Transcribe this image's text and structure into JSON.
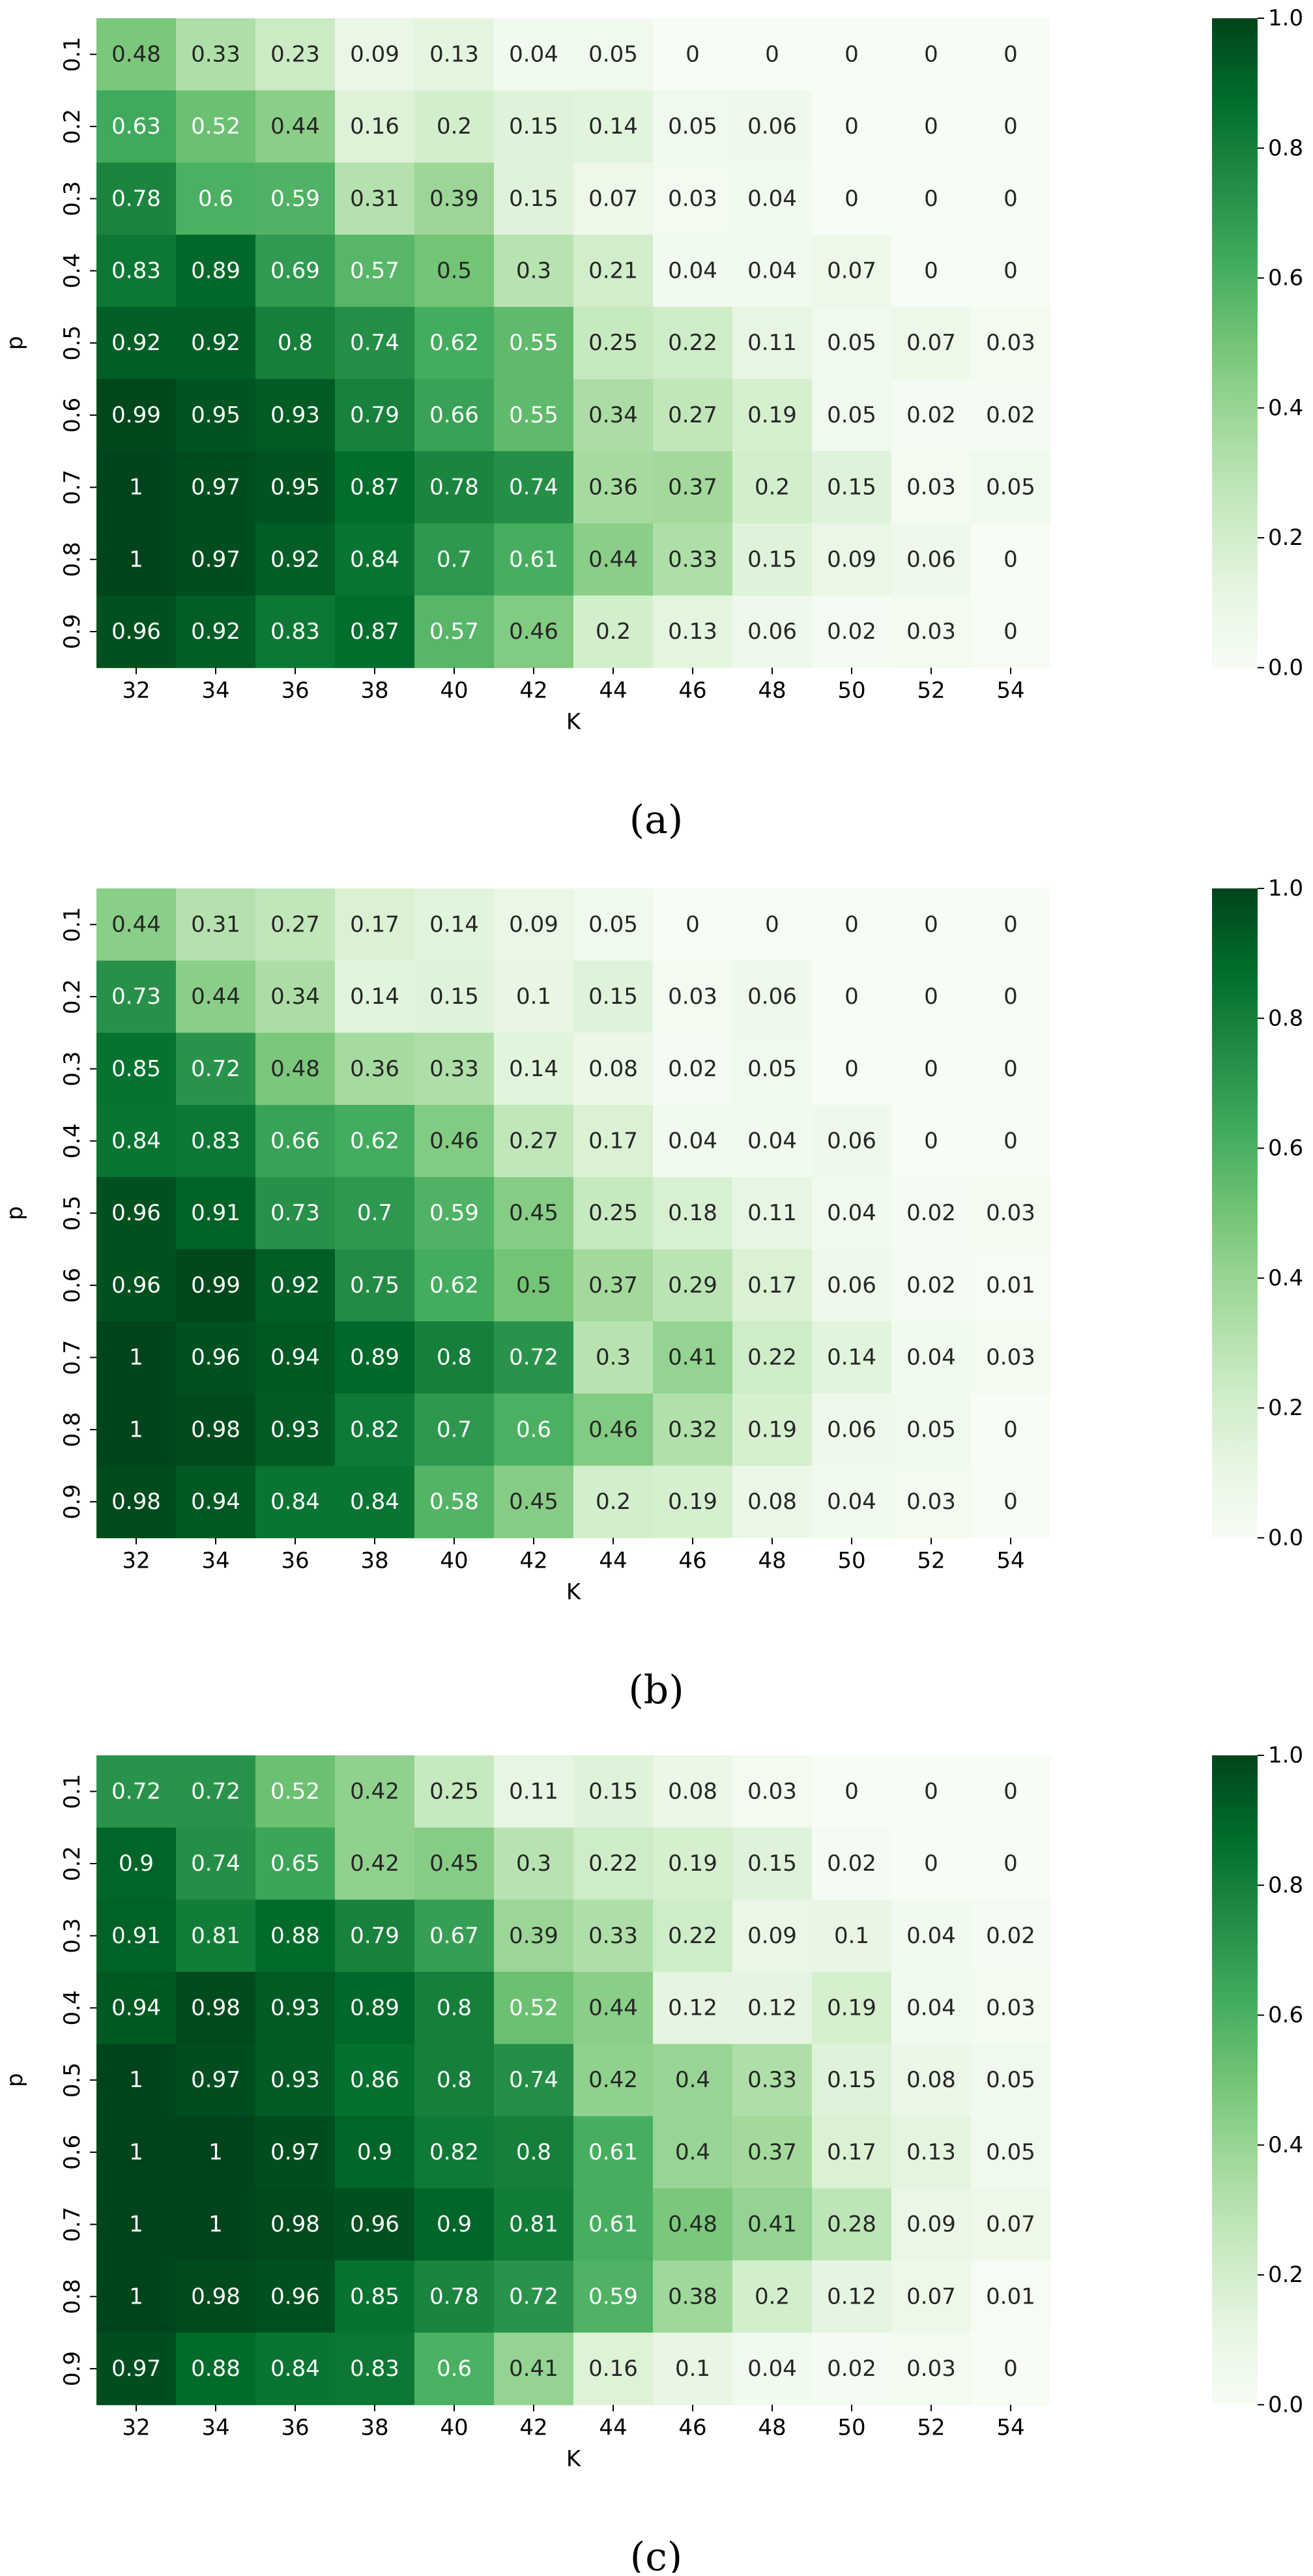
{
  "chart_data": [
    {
      "type": "heatmap",
      "caption": "(a)",
      "xlabel": "K",
      "ylabel": "p",
      "x_categories": [
        "32",
        "34",
        "36",
        "38",
        "40",
        "42",
        "44",
        "46",
        "48",
        "50",
        "52",
        "54"
      ],
      "y_categories": [
        "0.1",
        "0.2",
        "0.3",
        "0.4",
        "0.5",
        "0.6",
        "0.7",
        "0.8",
        "0.9"
      ],
      "values": [
        [
          0.48,
          0.33,
          0.23,
          0.09,
          0.13,
          0.04,
          0.05,
          0,
          0,
          0,
          0,
          0
        ],
        [
          0.63,
          0.52,
          0.44,
          0.16,
          0.2,
          0.15,
          0.14,
          0.05,
          0.06,
          0,
          0,
          0
        ],
        [
          0.78,
          0.6,
          0.59,
          0.31,
          0.39,
          0.15,
          0.07,
          0.03,
          0.04,
          0,
          0,
          0
        ],
        [
          0.83,
          0.89,
          0.69,
          0.57,
          0.5,
          0.3,
          0.21,
          0.04,
          0.04,
          0.07,
          0,
          0
        ],
        [
          0.92,
          0.92,
          0.8,
          0.74,
          0.62,
          0.55,
          0.25,
          0.22,
          0.11,
          0.05,
          0.07,
          0.03
        ],
        [
          0.99,
          0.95,
          0.93,
          0.79,
          0.66,
          0.55,
          0.34,
          0.27,
          0.19,
          0.05,
          0.02,
          0.02
        ],
        [
          1,
          0.97,
          0.95,
          0.87,
          0.78,
          0.74,
          0.36,
          0.37,
          0.2,
          0.15,
          0.03,
          0.05
        ],
        [
          1,
          0.97,
          0.92,
          0.84,
          0.7,
          0.61,
          0.44,
          0.33,
          0.15,
          0.09,
          0.06,
          0
        ],
        [
          0.96,
          0.92,
          0.83,
          0.87,
          0.57,
          0.46,
          0.2,
          0.13,
          0.06,
          0.02,
          0.03,
          0
        ]
      ],
      "colorbar": {
        "range": [
          0,
          1
        ],
        "ticks": [
          "0.0",
          "0.2",
          "0.4",
          "0.6",
          "0.8",
          "1.0"
        ]
      }
    },
    {
      "type": "heatmap",
      "caption": "(b)",
      "xlabel": "K",
      "ylabel": "p",
      "x_categories": [
        "32",
        "34",
        "36",
        "38",
        "40",
        "42",
        "44",
        "46",
        "48",
        "50",
        "52",
        "54"
      ],
      "y_categories": [
        "0.1",
        "0.2",
        "0.3",
        "0.4",
        "0.5",
        "0.6",
        "0.7",
        "0.8",
        "0.9"
      ],
      "values": [
        [
          0.44,
          0.31,
          0.27,
          0.17,
          0.14,
          0.09,
          0.05,
          0,
          0,
          0,
          0,
          0
        ],
        [
          0.73,
          0.44,
          0.34,
          0.14,
          0.15,
          0.1,
          0.15,
          0.03,
          0.06,
          0,
          0,
          0
        ],
        [
          0.85,
          0.72,
          0.48,
          0.36,
          0.33,
          0.14,
          0.08,
          0.02,
          0.05,
          0,
          0,
          0
        ],
        [
          0.84,
          0.83,
          0.66,
          0.62,
          0.46,
          0.27,
          0.17,
          0.04,
          0.04,
          0.06,
          0,
          0
        ],
        [
          0.96,
          0.91,
          0.73,
          0.7,
          0.59,
          0.45,
          0.25,
          0.18,
          0.11,
          0.04,
          0.02,
          0.03
        ],
        [
          0.96,
          0.99,
          0.92,
          0.75,
          0.62,
          0.5,
          0.37,
          0.29,
          0.17,
          0.06,
          0.02,
          0.01
        ],
        [
          1,
          0.96,
          0.94,
          0.89,
          0.8,
          0.72,
          0.3,
          0.41,
          0.22,
          0.14,
          0.04,
          0.03
        ],
        [
          1,
          0.98,
          0.93,
          0.82,
          0.7,
          0.6,
          0.46,
          0.32,
          0.19,
          0.06,
          0.05,
          0
        ],
        [
          0.98,
          0.94,
          0.84,
          0.84,
          0.58,
          0.45,
          0.2,
          0.19,
          0.08,
          0.04,
          0.03,
          0
        ]
      ],
      "colorbar": {
        "range": [
          0,
          1
        ],
        "ticks": [
          "0.0",
          "0.2",
          "0.4",
          "0.6",
          "0.8",
          "1.0"
        ]
      }
    },
    {
      "type": "heatmap",
      "caption": "(c)",
      "xlabel": "K",
      "ylabel": "p",
      "x_categories": [
        "32",
        "34",
        "36",
        "38",
        "40",
        "42",
        "44",
        "46",
        "48",
        "50",
        "52",
        "54"
      ],
      "y_categories": [
        "0.1",
        "0.2",
        "0.3",
        "0.4",
        "0.5",
        "0.6",
        "0.7",
        "0.8",
        "0.9"
      ],
      "values": [
        [
          0.72,
          0.72,
          0.52,
          0.42,
          0.25,
          0.11,
          0.15,
          0.08,
          0.03,
          0,
          0,
          0
        ],
        [
          0.9,
          0.74,
          0.65,
          0.42,
          0.45,
          0.3,
          0.22,
          0.19,
          0.15,
          0.02,
          0,
          0
        ],
        [
          0.91,
          0.81,
          0.88,
          0.79,
          0.67,
          0.39,
          0.33,
          0.22,
          0.09,
          0.1,
          0.04,
          0.02
        ],
        [
          0.94,
          0.98,
          0.93,
          0.89,
          0.8,
          0.52,
          0.44,
          0.12,
          0.12,
          0.19,
          0.04,
          0.03
        ],
        [
          1,
          0.97,
          0.93,
          0.86,
          0.8,
          0.74,
          0.42,
          0.4,
          0.33,
          0.15,
          0.08,
          0.05
        ],
        [
          1,
          1,
          0.97,
          0.9,
          0.82,
          0.8,
          0.61,
          0.4,
          0.37,
          0.17,
          0.13,
          0.05
        ],
        [
          1,
          1,
          0.98,
          0.96,
          0.9,
          0.81,
          0.61,
          0.48,
          0.41,
          0.28,
          0.09,
          0.07
        ],
        [
          1,
          0.98,
          0.96,
          0.85,
          0.78,
          0.72,
          0.59,
          0.38,
          0.2,
          0.12,
          0.07,
          0.01
        ],
        [
          0.97,
          0.88,
          0.84,
          0.83,
          0.6,
          0.41,
          0.16,
          0.1,
          0.04,
          0.02,
          0.03,
          0
        ]
      ],
      "colorbar": {
        "range": [
          0,
          1
        ],
        "ticks": [
          "0.0",
          "0.2",
          "0.4",
          "0.6",
          "0.8",
          "1.0"
        ]
      }
    }
  ]
}
